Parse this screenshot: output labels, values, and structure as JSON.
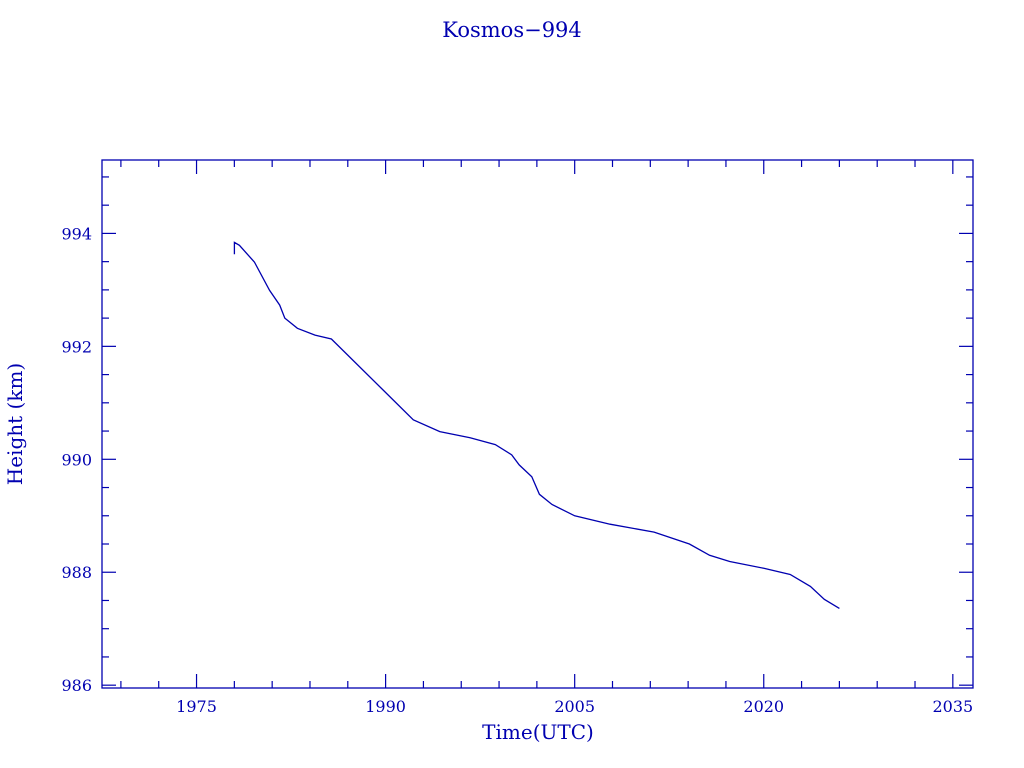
{
  "chart_data": {
    "type": "line",
    "title": "Kosmos−994",
    "xlabel": "Time(UTC)",
    "ylabel": "Height (km)",
    "xlim": [
      1967.5,
      2036.6
    ],
    "ylim": [
      985.95,
      995.3
    ],
    "xticks": [
      1975,
      1990,
      2005,
      2020,
      2035
    ],
    "yticks": [
      986,
      988,
      990,
      992,
      994
    ],
    "grid": false,
    "color": "#0000b0",
    "series": [
      {
        "x": [
          1978.0,
          1978.0,
          1978.4,
          1979.6,
          1980.8,
          1981.6,
          1982.0,
          1983.0,
          1984.4,
          1985.7,
          1992.2,
          1994.3,
          1996.7,
          1998.7,
          2000.0,
          2000.6,
          2001.6,
          2002.2,
          2003.2,
          2005.0,
          2007.8,
          2011.3,
          2014.1,
          2015.7,
          2017.3,
          2020.0,
          2022.1,
          2023.7,
          2024.8,
          2026.0
        ],
        "y": [
          993.63,
          993.84,
          993.79,
          993.49,
          992.99,
          992.73,
          992.5,
          992.32,
          992.2,
          992.13,
          990.7,
          990.49,
          990.38,
          990.26,
          990.08,
          989.9,
          989.69,
          989.38,
          989.2,
          989.0,
          988.85,
          988.71,
          988.5,
          988.3,
          988.19,
          988.07,
          987.96,
          987.75,
          987.52,
          987.36
        ]
      }
    ]
  }
}
